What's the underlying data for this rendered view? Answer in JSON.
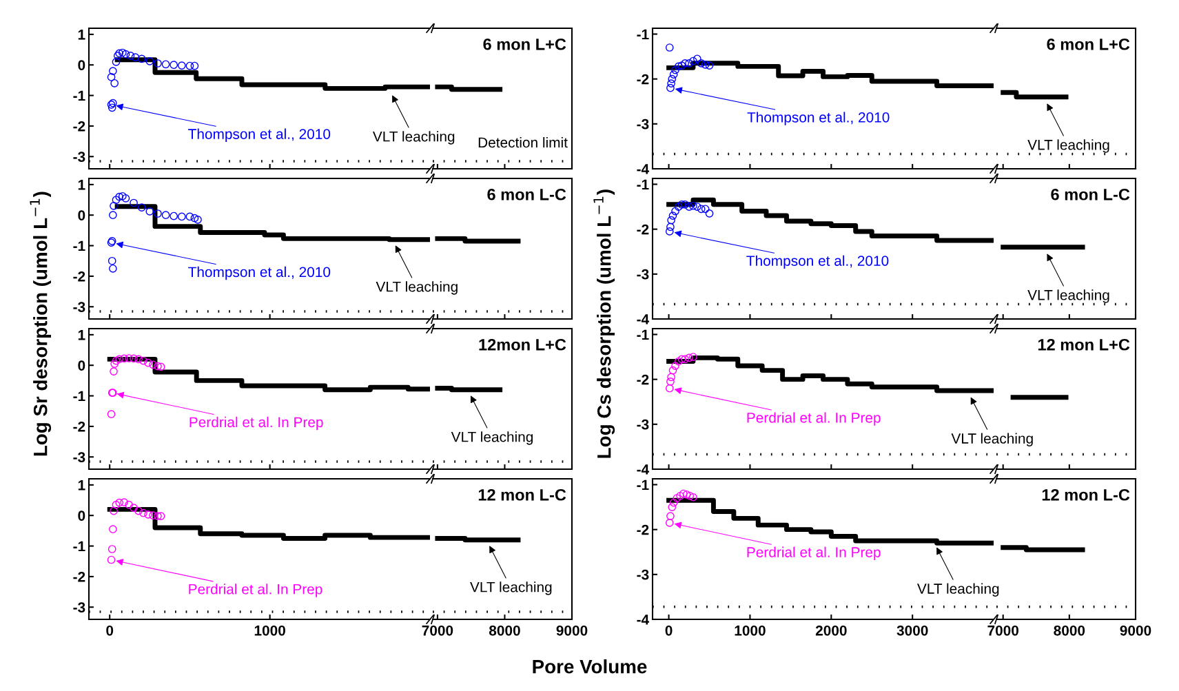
{
  "chart_data": [
    {
      "type": "line",
      "ylabel": "Log Sr desorption (umol L$^{−1}$)",
      "xlim": [
        -130,
        2000
      ],
      "xticks": [
        0,
        1000
      ],
      "ylim": [
        -3.4,
        1.2
      ],
      "yticks": [
        -3,
        -2,
        -1,
        0,
        1
      ],
      "tick_labels": "y",
      "series": [
        {
          "type": "scatter",
          "marker": "circle",
          "color": "#0000ff",
          "x": [
            10,
            15,
            20,
            10,
            20,
            30,
            40,
            50,
            60,
            80,
            100,
            130,
            160,
            200,
            250,
            300,
            350,
            400,
            450,
            500,
            530
          ],
          "values": [
            -1.3,
            -1.4,
            -1.25,
            -0.4,
            -0.2,
            -0.6,
            0.1,
            0.3,
            0.38,
            0.4,
            0.35,
            0.3,
            0.25,
            0.2,
            0.12,
            0.05,
            0.02,
            0.0,
            -0.02,
            -0.03,
            -0.03
          ]
        },
        {
          "type": "step",
          "color": "#000000",
          "x": [
            47,
            283,
            540,
            825,
            1345,
            1720,
            2000
          ],
          "values": [
            0.17,
            -0.25,
            -0.45,
            -0.65,
            -0.77,
            -0.72,
            -0.72
          ]
        }
      ],
      "ref_lines": [
        {
          "axis": "y",
          "value": -3.15,
          "line_style": "dotted",
          "color": "#000000"
        }
      ],
      "annotations": [
        {
          "text": "Thompson et al., 2010",
          "x": 10,
          "y": -1.3
        },
        {
          "text": "VLT leaching",
          "x": 1750,
          "y": -0.85
        }
      ]
    },
    {
      "type": "line",
      "title": "6 mon L+C",
      "xlim": [
        6930,
        9000
      ],
      "xticks": [
        7000,
        8000,
        9000
      ],
      "ylim": [
        -3.4,
        1.2
      ],
      "yticks": [
        -3,
        -2,
        -1,
        0,
        1
      ],
      "tick_labels": false,
      "series": [
        {
          "type": "step",
          "color": "#000000",
          "x": [
            7000,
            7210,
            7930
          ],
          "values": [
            -0.72,
            -0.8,
            -0.8
          ]
        }
      ],
      "ref_lines": [
        {
          "axis": "y",
          "value": -3.15,
          "label": "Detection limit",
          "line_style": "dotted",
          "color": "#000000"
        }
      ]
    },
    {
      "type": "line",
      "xlim": [
        -200,
        4000
      ],
      "xticks": [
        0,
        1000,
        2000,
        3000
      ],
      "ylim": [
        -4,
        -0.87
      ],
      "yticks": [
        -4,
        -3,
        -2,
        -1
      ],
      "tick_labels": "y",
      "series": [
        {
          "type": "scatter",
          "marker": "circle",
          "color": "#0000ff",
          "x": [
            10,
            20,
            30,
            40,
            60,
            80,
            120,
            160,
            200,
            250,
            300,
            350,
            400,
            450,
            500
          ],
          "values": [
            -1.3,
            -2.2,
            -2.1,
            -2.0,
            -1.9,
            -1.8,
            -1.72,
            -1.7,
            -1.65,
            -1.65,
            -1.6,
            -1.55,
            -1.65,
            -1.68,
            -1.7
          ]
        },
        {
          "type": "step",
          "color": "#000000",
          "x": [
            0,
            300,
            850,
            1350,
            1650,
            1900,
            2200,
            2500,
            3300,
            4000
          ],
          "values": [
            -1.75,
            -1.65,
            -1.72,
            -1.93,
            -1.83,
            -1.95,
            -1.92,
            -2.05,
            -2.15,
            -2.15
          ]
        }
      ],
      "ref_lines": [
        {
          "axis": "y",
          "value": -3.67,
          "line_style": "dotted",
          "color": "#000000"
        }
      ],
      "annotations": [
        {
          "text": "Thompson et al., 2010",
          "x": 20,
          "y": -2.2
        }
      ]
    },
    {
      "type": "line",
      "title": "6 mon L+C",
      "xlim": [
        6900,
        9000
      ],
      "xticks": [
        7000,
        8000,
        9000
      ],
      "ylim": [
        -4,
        -0.87
      ],
      "yticks": [
        -4,
        -3,
        -2,
        -1
      ],
      "tick_labels": false,
      "series": [
        {
          "type": "step",
          "color": "#000000",
          "x": [
            7000,
            7200,
            7950
          ],
          "values": [
            -2.3,
            -2.4,
            -2.4
          ]
        }
      ],
      "ref_lines": [
        {
          "axis": "y",
          "value": -3.67,
          "line_style": "dotted",
          "color": "#000000"
        }
      ],
      "annotations": [
        {
          "text": "VLT leaching",
          "x": 7630,
          "y": -2.45
        }
      ]
    },
    {
      "type": "line",
      "xlim": [
        -130,
        2000
      ],
      "xticks": [
        0,
        1000
      ],
      "ylim": [
        -3.4,
        1.2
      ],
      "yticks": [
        -3,
        -2,
        -1,
        0,
        1
      ],
      "tick_labels": "y",
      "series": [
        {
          "type": "scatter",
          "marker": "circle",
          "color": "#0000ff",
          "x": [
            10,
            15,
            20,
            15,
            20,
            25,
            40,
            60,
            80,
            100,
            150,
            200,
            250,
            300,
            350,
            400,
            450,
            500,
            530,
            550
          ],
          "values": [
            -0.9,
            -1.5,
            -1.75,
            -0.85,
            0,
            0.3,
            0.5,
            0.6,
            0.62,
            0.55,
            0.4,
            0.25,
            0.12,
            0.05,
            0,
            -0.03,
            -0.05,
            -0.05,
            -0.1,
            -0.15
          ]
        },
        {
          "type": "step",
          "color": "#000000",
          "x": [
            47,
            283,
            566,
            967,
            1085,
            1745,
            2000
          ],
          "values": [
            0.28,
            -0.37,
            -0.57,
            -0.65,
            -0.77,
            -0.8,
            -0.8
          ]
        }
      ],
      "ref_lines": [
        {
          "axis": "y",
          "value": -3.15,
          "line_style": "dotted",
          "color": "#000000"
        }
      ],
      "annotations": [
        {
          "text": "Thompson et al., 2010",
          "x": 10,
          "y": -0.9
        },
        {
          "text": "VLT leaching",
          "x": 1770,
          "y": -0.85
        }
      ]
    },
    {
      "type": "line",
      "title": "6 mon L-C",
      "xlim": [
        6930,
        9000
      ],
      "xticks": [
        7000,
        8000,
        9000
      ],
      "ylim": [
        -3.4,
        1.2
      ],
      "yticks": [
        -3,
        -2,
        -1,
        0,
        1
      ],
      "tick_labels": false,
      "series": [
        {
          "type": "step",
          "color": "#000000",
          "x": [
            7000,
            7410,
            8200
          ],
          "values": [
            -0.77,
            -0.85,
            -0.85
          ]
        }
      ],
      "ref_lines": [
        {
          "axis": "y",
          "value": -3.15,
          "line_style": "dotted",
          "color": "#000000"
        }
      ]
    },
    {
      "type": "line",
      "ylabel": "Log Cs desorption (umol L$^{−1}$)",
      "xlim": [
        -200,
        4000
      ],
      "xticks": [
        0,
        1000,
        2000,
        3000
      ],
      "ylim": [
        -4,
        -0.87
      ],
      "yticks": [
        -4,
        -3,
        -2,
        -1
      ],
      "tick_labels": "y",
      "series": [
        {
          "type": "scatter",
          "marker": "circle",
          "color": "#0000ff",
          "x": [
            10,
            20,
            30,
            50,
            80,
            120,
            160,
            200,
            250,
            300,
            350,
            400,
            450,
            500
          ],
          "values": [
            -2.05,
            -1.95,
            -1.8,
            -1.7,
            -1.6,
            -1.5,
            -1.45,
            -1.45,
            -1.5,
            -1.48,
            -1.5,
            -1.55,
            -1.55,
            -1.65
          ]
        },
        {
          "type": "step",
          "color": "#000000",
          "x": [
            0,
            300,
            550,
            900,
            1200,
            1450,
            1750,
            2000,
            2300,
            2500,
            3300,
            4000
          ],
          "values": [
            -1.45,
            -1.35,
            -1.45,
            -1.6,
            -1.7,
            -1.82,
            -1.88,
            -1.92,
            -2.05,
            -2.15,
            -2.25,
            -2.25
          ]
        }
      ],
      "ref_lines": [
        {
          "axis": "y",
          "value": -3.67,
          "line_style": "dotted",
          "color": "#000000"
        }
      ],
      "annotations": [
        {
          "text": "Thompson et al., 2010",
          "x": 10,
          "y": -2.05
        }
      ]
    },
    {
      "type": "line",
      "title": "6 mon L-C",
      "xlim": [
        6900,
        9000
      ],
      "xticks": [
        7000,
        8000,
        9000
      ],
      "ylim": [
        -4,
        -0.87
      ],
      "yticks": [
        -4,
        -3,
        -2,
        -1
      ],
      "tick_labels": false,
      "series": [
        {
          "type": "step",
          "color": "#000000",
          "x": [
            7000,
            8200
          ],
          "values": [
            -2.4,
            -2.4
          ]
        }
      ],
      "ref_lines": [
        {
          "axis": "y",
          "value": -3.67,
          "line_style": "dotted",
          "color": "#000000"
        }
      ],
      "annotations": [
        {
          "text": "VLT leaching",
          "x": 7630,
          "y": -2.45
        }
      ]
    },
    {
      "type": "line",
      "xlim": [
        -130,
        2000
      ],
      "xticks": [
        0,
        1000
      ],
      "ylim": [
        -3.4,
        1.2
      ],
      "yticks": [
        -3,
        -2,
        -1,
        0,
        1
      ],
      "tick_labels": "y",
      "series": [
        {
          "type": "scatter",
          "marker": "circle",
          "color": "#ff00ff",
          "x": [
            10,
            15,
            20,
            25,
            30,
            40,
            60,
            90,
            120,
            150,
            180,
            210,
            240,
            270,
            300,
            320
          ],
          "values": [
            -1.6,
            -0.9,
            -0.9,
            -0.2,
            0.05,
            0.15,
            0.2,
            0.22,
            0.23,
            0.22,
            0.2,
            0.15,
            0.08,
            0.02,
            -0.03,
            -0.05
          ]
        },
        {
          "type": "step",
          "color": "#000000",
          "x": [
            0,
            283,
            542,
            825,
            1344,
            1627,
            1863,
            2000
          ],
          "values": [
            0.2,
            -0.22,
            -0.5,
            -0.67,
            -0.8,
            -0.72,
            -0.78,
            -0.78
          ]
        }
      ],
      "ref_lines": [
        {
          "axis": "y",
          "value": -3.15,
          "line_style": "dotted",
          "color": "#000000"
        }
      ],
      "annotations": [
        {
          "text": "Perdrial et al. In Prep",
          "x": 15,
          "y": -0.9
        }
      ]
    },
    {
      "type": "line",
      "title": "12mon L+C",
      "xlim": [
        6930,
        9000
      ],
      "xticks": [
        7000,
        8000,
        9000
      ],
      "ylim": [
        -3.4,
        1.2
      ],
      "yticks": [
        -3,
        -2,
        -1,
        0,
        1
      ],
      "tick_labels": false,
      "series": [
        {
          "type": "step",
          "color": "#000000",
          "x": [
            7000,
            7210,
            7930
          ],
          "values": [
            -0.75,
            -0.8,
            -0.8
          ]
        }
      ],
      "ref_lines": [
        {
          "axis": "y",
          "value": -3.15,
          "line_style": "dotted",
          "color": "#000000"
        }
      ],
      "annotations": [
        {
          "text": "VLT leaching",
          "x": 7460,
          "y": -0.85
        }
      ]
    },
    {
      "type": "line",
      "xlim": [
        -200,
        4000
      ],
      "xticks": [
        0,
        1000,
        2000,
        3000
      ],
      "ylim": [
        -4,
        -0.87
      ],
      "yticks": [
        -4,
        -3,
        -2,
        -1
      ],
      "tick_labels": "y",
      "series": [
        {
          "type": "scatter",
          "marker": "circle",
          "color": "#ff00ff",
          "x": [
            10,
            20,
            30,
            50,
            80,
            120,
            160,
            200,
            250,
            300
          ],
          "values": [
            -2.2,
            -2.05,
            -1.95,
            -1.8,
            -1.7,
            -1.6,
            -1.55,
            -1.55,
            -1.52,
            -1.5
          ]
        },
        {
          "type": "step",
          "color": "#000000",
          "x": [
            0,
            300,
            600,
            850,
            1150,
            1400,
            1650,
            1900,
            2200,
            2500,
            3300,
            4000
          ],
          "values": [
            -1.6,
            -1.52,
            -1.55,
            -1.7,
            -1.8,
            -2.0,
            -1.92,
            -2.0,
            -2.1,
            -2.17,
            -2.25,
            -2.25
          ]
        }
      ],
      "ref_lines": [
        {
          "axis": "y",
          "value": -3.67,
          "line_style": "dotted",
          "color": "#000000"
        }
      ],
      "annotations": [
        {
          "text": "Perdrial et al. In Prep",
          "x": 10,
          "y": -2.2
        },
        {
          "text": "VLT leaching",
          "x": 3690,
          "y": -2.3
        }
      ]
    },
    {
      "type": "line",
      "title": "12 mon L+C",
      "xlim": [
        6900,
        9000
      ],
      "xticks": [
        7000,
        8000,
        9000
      ],
      "ylim": [
        -4,
        -0.87
      ],
      "yticks": [
        -4,
        -3,
        -2,
        -1
      ],
      "tick_labels": false,
      "series": [
        {
          "type": "step",
          "color": "#000000",
          "x": [
            7150,
            7950
          ],
          "values": [
            -2.4,
            -2.4
          ]
        }
      ],
      "ref_lines": [
        {
          "axis": "y",
          "value": -3.67,
          "line_style": "dotted",
          "color": "#000000"
        }
      ]
    },
    {
      "type": "line",
      "xlim": [
        -130,
        2000
      ],
      "xticks": [
        0,
        1000
      ],
      "ylim": [
        -3.4,
        1.2
      ],
      "yticks": [
        -3,
        -2,
        -1,
        0,
        1
      ],
      "series": [
        {
          "type": "scatter",
          "marker": "circle",
          "color": "#ff00ff",
          "x": [
            10,
            15,
            20,
            25,
            40,
            60,
            90,
            120,
            150,
            180,
            210,
            240,
            270,
            300,
            320
          ],
          "values": [
            -1.45,
            -1.1,
            -0.45,
            0.15,
            0.35,
            0.42,
            0.43,
            0.35,
            0.25,
            0.15,
            0.08,
            0.03,
            0,
            -0.02,
            -0.02
          ]
        },
        {
          "type": "step",
          "color": "#000000",
          "x": [
            0,
            283,
            566,
            825,
            1085,
            1344,
            1627,
            2000
          ],
          "values": [
            0.2,
            -0.4,
            -0.6,
            -0.65,
            -0.75,
            -0.65,
            -0.72,
            -0.72
          ]
        }
      ],
      "ref_lines": [
        {
          "axis": "y",
          "value": -3.15,
          "line_style": "dotted",
          "color": "#000000"
        }
      ],
      "annotations": [
        {
          "text": "Perdrial et al. In Prep",
          "x": 10,
          "y": -1.45
        }
      ]
    },
    {
      "type": "line",
      "title": "12 mon L-C",
      "xlim": [
        6930,
        9000
      ],
      "xticks": [
        7000,
        8000,
        9000
      ],
      "ylim": [
        -3.4,
        1.2
      ],
      "yticks": [
        -3,
        -2,
        -1,
        0,
        1
      ],
      "tick_labels": "x",
      "series": [
        {
          "type": "step",
          "color": "#000000",
          "x": [
            7000,
            7410,
            8200
          ],
          "values": [
            -0.75,
            -0.8,
            -0.8
          ]
        }
      ],
      "ref_lines": [
        {
          "axis": "y",
          "value": -3.15,
          "line_style": "dotted",
          "color": "#000000"
        }
      ],
      "annotations": [
        {
          "text": "VLT leaching",
          "x": 7740,
          "y": -0.85
        }
      ]
    },
    {
      "type": "line",
      "xlabel": "Pore Volume",
      "xlim": [
        -200,
        4000
      ],
      "xticks": [
        0,
        1000,
        2000,
        3000
      ],
      "ylim": [
        -4,
        -0.87
      ],
      "yticks": [
        -4,
        -3,
        -2,
        -1
      ],
      "series": [
        {
          "type": "scatter",
          "marker": "circle",
          "color": "#ff00ff",
          "x": [
            10,
            20,
            40,
            60,
            100,
            140,
            180,
            220,
            260,
            300
          ],
          "values": [
            -1.85,
            -1.7,
            -1.5,
            -1.4,
            -1.3,
            -1.25,
            -1.2,
            -1.22,
            -1.25,
            -1.28
          ]
        },
        {
          "type": "step",
          "color": "#000000",
          "x": [
            0,
            550,
            800,
            1100,
            1450,
            1750,
            2000,
            2300,
            3300,
            4000
          ],
          "values": [
            -1.35,
            -1.6,
            -1.75,
            -1.9,
            -2.0,
            -2.05,
            -2.15,
            -2.25,
            -2.3,
            -2.3
          ]
        }
      ],
      "ref_lines": [
        {
          "axis": "y",
          "value": -3.72,
          "line_style": "dotted",
          "color": "#000000"
        }
      ],
      "annotations": [
        {
          "text": "Perdrial et al. In Prep",
          "x": 10,
          "y": -1.85
        },
        {
          "text": "VLT leaching",
          "x": 3270,
          "y": -2.3
        }
      ]
    },
    {
      "type": "line",
      "title": "12 mon L-C",
      "xlim": [
        6900,
        9000
      ],
      "xticks": [
        7000,
        8000,
        9000
      ],
      "ylim": [
        -4,
        -0.87
      ],
      "yticks": [
        -4,
        -3,
        -2,
        -1
      ],
      "tick_labels": "x",
      "series": [
        {
          "type": "step",
          "color": "#000000",
          "x": [
            7000,
            7350,
            8200
          ],
          "values": [
            -2.4,
            -2.45,
            -2.45
          ]
        }
      ],
      "ref_lines": [
        {
          "axis": "y",
          "value": -3.72,
          "line_style": "dotted",
          "color": "#000000"
        }
      ]
    }
  ]
}
